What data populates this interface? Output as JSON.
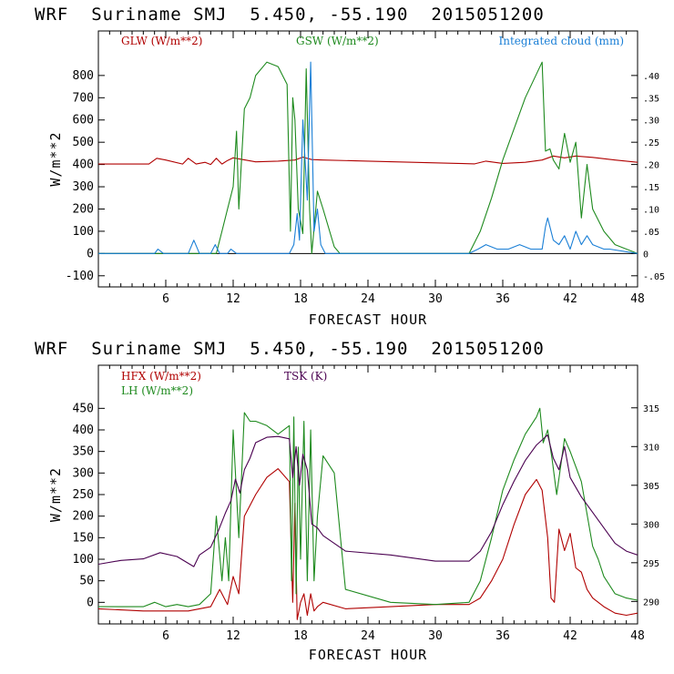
{
  "chart_data": [
    {
      "type": "line",
      "title": "WRF  Suriname SMJ  5.450, -55.190  2015051200",
      "xlabel": "FORECAST HOUR",
      "ylabel": "W/m**2",
      "xlim": [
        0,
        48
      ],
      "ylim": [
        -150,
        1000
      ],
      "x_ticks": [
        6,
        12,
        18,
        24,
        30,
        36,
        42,
        48
      ],
      "y_ticks": [
        -100,
        0,
        100,
        200,
        300,
        400,
        500,
        600,
        700,
        800
      ],
      "y2lim": [
        -0.075,
        0.5
      ],
      "y2_ticks": [
        "-.05",
        "0",
        ".05",
        ".10",
        ".15",
        ".20",
        ".25",
        ".30",
        ".35",
        ".40"
      ],
      "zero_line": 0,
      "series": [
        {
          "name": "GLW (W/m**2)",
          "color": "#b00000",
          "axis": "left",
          "x": [
            0,
            4.5,
            5.2,
            6,
            7.5,
            8,
            8.7,
            9.5,
            10,
            10.5,
            11,
            11.5,
            12,
            14,
            16,
            17.5,
            18.2,
            19,
            20,
            24,
            28,
            32,
            33.5,
            34.5,
            36,
            38,
            39.5,
            40.5,
            41.5,
            42.5,
            44,
            46,
            48
          ],
          "values": [
            402,
            402,
            428,
            420,
            402,
            428,
            402,
            410,
            400,
            428,
            402,
            418,
            430,
            412,
            415,
            420,
            433,
            422,
            420,
            415,
            410,
            405,
            403,
            415,
            405,
            410,
            420,
            438,
            430,
            438,
            432,
            420,
            410
          ]
        },
        {
          "name": "GSW (W/m**2)",
          "color": "#1e8a1e",
          "axis": "left",
          "x": [
            0,
            10.5,
            11,
            11.5,
            12,
            12.3,
            12.5,
            13,
            13.5,
            14,
            15,
            16,
            16.8,
            17.1,
            17.3,
            17.5,
            17.8,
            18.2,
            18.5,
            18.8,
            19,
            19.5,
            20,
            21,
            21.5,
            33,
            34,
            35,
            36,
            38,
            39.5,
            39.8,
            40.2,
            40.5,
            41,
            41.5,
            42,
            42.5,
            43,
            43.5,
            44,
            45,
            46,
            48
          ],
          "values": [
            0,
            0,
            100,
            200,
            300,
            550,
            200,
            650,
            700,
            800,
            860,
            840,
            760,
            100,
            700,
            600,
            200,
            90,
            830,
            200,
            0,
            280,
            200,
            30,
            0,
            0,
            100,
            250,
            420,
            700,
            860,
            460,
            470,
            420,
            380,
            540,
            410,
            500,
            160,
            400,
            200,
            100,
            40,
            0
          ]
        },
        {
          "name": "Integrated cloud (mm)",
          "color": "#1a7fd6",
          "axis": "right",
          "x": [
            0,
            5,
            5.3,
            5.8,
            8,
            8.5,
            9,
            10,
            10.4,
            10.8,
            11.5,
            11.8,
            12.3,
            17,
            17.4,
            17.7,
            17.9,
            18.2,
            18.6,
            18.9,
            19.2,
            19.5,
            19.8,
            20.2,
            33,
            33.8,
            34.5,
            35.5,
            36.5,
            37.5,
            38.5,
            39.5,
            39.8,
            40,
            40.5,
            41,
            41.5,
            42,
            42.5,
            43,
            43.5,
            44,
            45,
            45.5,
            48
          ],
          "values": [
            0,
            0,
            0.01,
            0,
            0,
            0.03,
            0,
            0,
            0.02,
            0,
            0,
            0.01,
            0,
            0,
            0.02,
            0.09,
            0.03,
            0.3,
            0.12,
            0.43,
            0.05,
            0.1,
            0.02,
            0,
            0,
            0.01,
            0.02,
            0.01,
            0.01,
            0.02,
            0.01,
            0.01,
            0.06,
            0.08,
            0.03,
            0.02,
            0.04,
            0.01,
            0.05,
            0.02,
            0.04,
            0.02,
            0.01,
            0.01,
            0
          ]
        }
      ],
      "legend": [
        "GLW (W/m**2)",
        "GSW (W/m**2)",
        "Integrated cloud (mm)"
      ]
    },
    {
      "type": "line",
      "title": "WRF  Suriname SMJ  5.450, -55.190  2015051200",
      "xlabel": "FORECAST HOUR",
      "ylabel": "W/m**2",
      "xlim": [
        0,
        48
      ],
      "ylim": [
        -50,
        550
      ],
      "x_ticks": [
        6,
        12,
        18,
        24,
        30,
        36,
        42,
        48
      ],
      "y_ticks": [
        0,
        50,
        100,
        150,
        200,
        250,
        300,
        350,
        400,
        450
      ],
      "y2lim": [
        287.1,
        320.5
      ],
      "y2_ticks": [
        "290",
        "295",
        "300",
        "305",
        "310",
        "315"
      ],
      "series": [
        {
          "name": "HFX (W/m**2)",
          "color": "#b00000",
          "axis": "left",
          "x": [
            0,
            4,
            8,
            10,
            10.8,
            11.5,
            12,
            12.5,
            13,
            14,
            15,
            16,
            17,
            17.3,
            17.5,
            17.7,
            18,
            18.3,
            18.6,
            18.9,
            19.2,
            19.5,
            20,
            22,
            26,
            30,
            33,
            34,
            35,
            36,
            37,
            38,
            39,
            39.5,
            40,
            40.3,
            40.6,
            41,
            41.5,
            42,
            42.5,
            43,
            43.5,
            44,
            45,
            46,
            47,
            48
          ],
          "values": [
            -15,
            -20,
            -20,
            -10,
            30,
            -5,
            60,
            20,
            200,
            250,
            290,
            310,
            280,
            0,
            230,
            -40,
            0,
            20,
            -30,
            20,
            -20,
            -10,
            0,
            -15,
            -10,
            -5,
            -5,
            10,
            50,
            100,
            180,
            250,
            285,
            260,
            150,
            10,
            0,
            170,
            120,
            160,
            80,
            70,
            30,
            10,
            -10,
            -25,
            -30,
            -25
          ]
        },
        {
          "name": "LH (W/m**2)",
          "color": "#1e8a1e",
          "axis": "left",
          "x": [
            0,
            4,
            5,
            6,
            7,
            8,
            9,
            10,
            10.5,
            11,
            11.3,
            11.6,
            12,
            12.5,
            13,
            13.5,
            14,
            15,
            16,
            17,
            17.2,
            17.4,
            17.6,
            17.8,
            18,
            18.3,
            18.6,
            18.9,
            19.2,
            19.5,
            20,
            21,
            22,
            26,
            30,
            33,
            34,
            35,
            36,
            37,
            38,
            39,
            39.3,
            39.6,
            40,
            40.4,
            40.8,
            41.5,
            42,
            43,
            44,
            44.5,
            45,
            46,
            47,
            48
          ],
          "values": [
            -10,
            -10,
            0,
            -10,
            -5,
            -10,
            -5,
            20,
            200,
            50,
            150,
            50,
            400,
            150,
            440,
            420,
            420,
            410,
            390,
            410,
            50,
            430,
            20,
            360,
            100,
            420,
            50,
            400,
            50,
            200,
            340,
            300,
            30,
            0,
            -5,
            0,
            50,
            150,
            260,
            330,
            390,
            430,
            450,
            370,
            400,
            330,
            250,
            380,
            350,
            280,
            130,
            100,
            60,
            20,
            10,
            5
          ]
        },
        {
          "name": "TSK (K)",
          "color": "#4a0050",
          "axis": "right",
          "x": [
            0,
            2,
            4,
            5.5,
            7,
            8.5,
            9,
            10,
            10.7,
            11.3,
            11.8,
            12.2,
            12.6,
            13,
            13.5,
            14,
            15,
            16,
            17,
            17.3,
            17.6,
            17.9,
            18.2,
            18.6,
            19,
            19.5,
            20,
            22,
            26,
            30,
            33,
            34,
            35,
            36,
            37,
            38,
            39,
            40,
            40.5,
            41,
            41.5,
            42,
            43,
            44,
            45,
            46,
            47,
            48
          ],
          "values": [
            294.8,
            295.3,
            295.5,
            296.3,
            295.8,
            294.5,
            296,
            297,
            299.2,
            301.4,
            303,
            305.8,
            304,
            307,
            308.5,
            310.5,
            311.2,
            311.3,
            311,
            306,
            310,
            305,
            309,
            307,
            300,
            299.5,
            298.5,
            296.5,
            296,
            295.2,
            295.2,
            296.5,
            299,
            302.5,
            305.5,
            308.2,
            310.2,
            311.5,
            308.5,
            307,
            310,
            306,
            303.5,
            301.5,
            299.5,
            297.5,
            296.5,
            296
          ]
        }
      ],
      "legend": [
        "HFX (W/m**2)",
        "LH (W/m**2)",
        "TSK (K)"
      ]
    }
  ]
}
